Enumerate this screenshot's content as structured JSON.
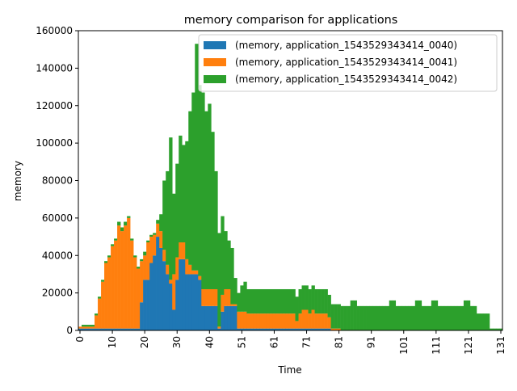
{
  "chart_data": {
    "type": "stacked_bar",
    "title": "memory comparison for applications",
    "x_label": "Time",
    "y_label": "memory",
    "categories": [
      "0",
      null,
      null,
      null,
      null,
      null,
      null,
      null,
      null,
      null,
      "10",
      null,
      null,
      null,
      null,
      null,
      null,
      null,
      null,
      null,
      "20",
      null,
      null,
      null,
      null,
      null,
      null,
      null,
      null,
      null,
      "30",
      null,
      null,
      null,
      null,
      null,
      null,
      null,
      null,
      null,
      "40",
      null,
      null,
      null,
      null,
      null,
      null,
      null,
      null,
      null,
      "51",
      null,
      null,
      null,
      null,
      null,
      null,
      null,
      null,
      null,
      "61",
      null,
      null,
      null,
      null,
      null,
      null,
      null,
      null,
      null,
      "71",
      null,
      null,
      null,
      null,
      null,
      null,
      null,
      null,
      null,
      "81",
      null,
      null,
      null,
      null,
      null,
      null,
      null,
      null,
      null,
      "91",
      null,
      null,
      null,
      null,
      null,
      null,
      null,
      null,
      null,
      "101",
      null,
      null,
      null,
      null,
      null,
      null,
      null,
      null,
      null,
      "111",
      null,
      null,
      null,
      null,
      null,
      null,
      null,
      null,
      null,
      "121",
      null,
      null,
      null,
      null,
      null,
      null,
      null,
      null,
      null,
      "131"
    ],
    "series": [
      {
        "name": "(memory, application_1543529343414_0040)",
        "color": "#1f77b4",
        "values": [
          1000,
          1000,
          1000,
          1000,
          1000,
          1000,
          1000,
          1000,
          1000,
          1000,
          1000,
          1000,
          1000,
          1000,
          1000,
          1000,
          1000,
          1000,
          1000,
          15000,
          27000,
          27000,
          36000,
          40000,
          50000,
          44000,
          37000,
          30000,
          25000,
          11000,
          27000,
          38000,
          38000,
          30000,
          30000,
          30000,
          30000,
          27000,
          13000,
          13000,
          13000,
          13000,
          13000,
          1000,
          10000,
          13000,
          13000,
          13000,
          13000,
          1000,
          1000,
          1000,
          1000,
          1000,
          1000,
          1000,
          1000,
          1000,
          1000,
          1000,
          1000,
          1000,
          1000,
          1000,
          1000,
          1000,
          1000,
          1000,
          1000,
          1000,
          1000,
          1000,
          1000,
          1000,
          1000,
          1000,
          1000,
          1000,
          0,
          0,
          0,
          0,
          0,
          0,
          0,
          0,
          0,
          0,
          0,
          0,
          0,
          0,
          0,
          0,
          0,
          0,
          0,
          0,
          0,
          0,
          0,
          0,
          0,
          0,
          0,
          0,
          0,
          0,
          0,
          0,
          0,
          0,
          0,
          0,
          0,
          0,
          0,
          0,
          0,
          0,
          0,
          0,
          0,
          0,
          0,
          0,
          0,
          0,
          0,
          0,
          0
        ]
      },
      {
        "name": "(memory, application_1543529343414_0041)",
        "color": "#ff7f0e",
        "values": [
          1000,
          1000,
          1000,
          1000,
          1000,
          7000,
          16000,
          25000,
          35000,
          38000,
          44000,
          47000,
          55000,
          52000,
          55000,
          59000,
          47000,
          38000,
          32000,
          22000,
          13000,
          20000,
          14000,
          11000,
          7000,
          9000,
          6000,
          5000,
          2000,
          19000,
          12000,
          9000,
          9000,
          8000,
          5000,
          2000,
          2000,
          2000,
          9000,
          9000,
          9000,
          9000,
          9000,
          1000,
          9000,
          9000,
          9000,
          1000,
          1000,
          9000,
          9000,
          9000,
          8000,
          8000,
          8000,
          8000,
          8000,
          8000,
          8000,
          8000,
          8000,
          8000,
          8000,
          8000,
          8000,
          8000,
          8000,
          4000,
          8000,
          10000,
          10000,
          8000,
          10000,
          8000,
          8000,
          8000,
          8000,
          6000,
          1000,
          1000,
          1000,
          0,
          0,
          0,
          0,
          0,
          0,
          0,
          0,
          0,
          0,
          0,
          0,
          0,
          0,
          0,
          0,
          0,
          0,
          0,
          0,
          0,
          0,
          0,
          0,
          0,
          0,
          0,
          0,
          0,
          0,
          0,
          0,
          0,
          0,
          0,
          0,
          0,
          0,
          0,
          0,
          0,
          0,
          0,
          0,
          0,
          0,
          0,
          0,
          0,
          0
        ]
      },
      {
        "name": "(memory, application_1543529343414_0042)",
        "color": "#2ca02c",
        "values": [
          0,
          1000,
          1000,
          1000,
          1000,
          1000,
          1000,
          1000,
          1000,
          1000,
          1000,
          1000,
          2000,
          2000,
          2000,
          1000,
          1000,
          1000,
          1000,
          1000,
          2000,
          1000,
          1000,
          1000,
          2000,
          9000,
          37000,
          50000,
          76000,
          43000,
          50000,
          57000,
          52000,
          63000,
          82000,
          95000,
          121000,
          102000,
          105000,
          95000,
          99000,
          84000,
          63000,
          50000,
          42000,
          31000,
          26000,
          30000,
          14000,
          10000,
          14000,
          16000,
          13000,
          13000,
          13000,
          13000,
          13000,
          13000,
          13000,
          13000,
          13000,
          13000,
          13000,
          13000,
          13000,
          13000,
          13000,
          13000,
          13000,
          13000,
          13000,
          13000,
          13000,
          13000,
          13000,
          13000,
          13000,
          12000,
          13000,
          13000,
          13000,
          13000,
          13000,
          13000,
          16000,
          16000,
          13000,
          13000,
          13000,
          13000,
          13000,
          13000,
          13000,
          13000,
          13000,
          13000,
          16000,
          16000,
          13000,
          13000,
          13000,
          13000,
          13000,
          13000,
          16000,
          16000,
          13000,
          13000,
          13000,
          16000,
          16000,
          13000,
          13000,
          13000,
          13000,
          13000,
          13000,
          13000,
          13000,
          16000,
          16000,
          13000,
          13000,
          9000,
          9000,
          9000,
          9000,
          1000,
          1000,
          1000,
          1000
        ]
      }
    ],
    "ylim": [
      0,
      160000
    ],
    "yticks": [
      0,
      20000,
      40000,
      60000,
      80000,
      100000,
      120000,
      140000,
      160000
    ],
    "legend": "upper right"
  }
}
